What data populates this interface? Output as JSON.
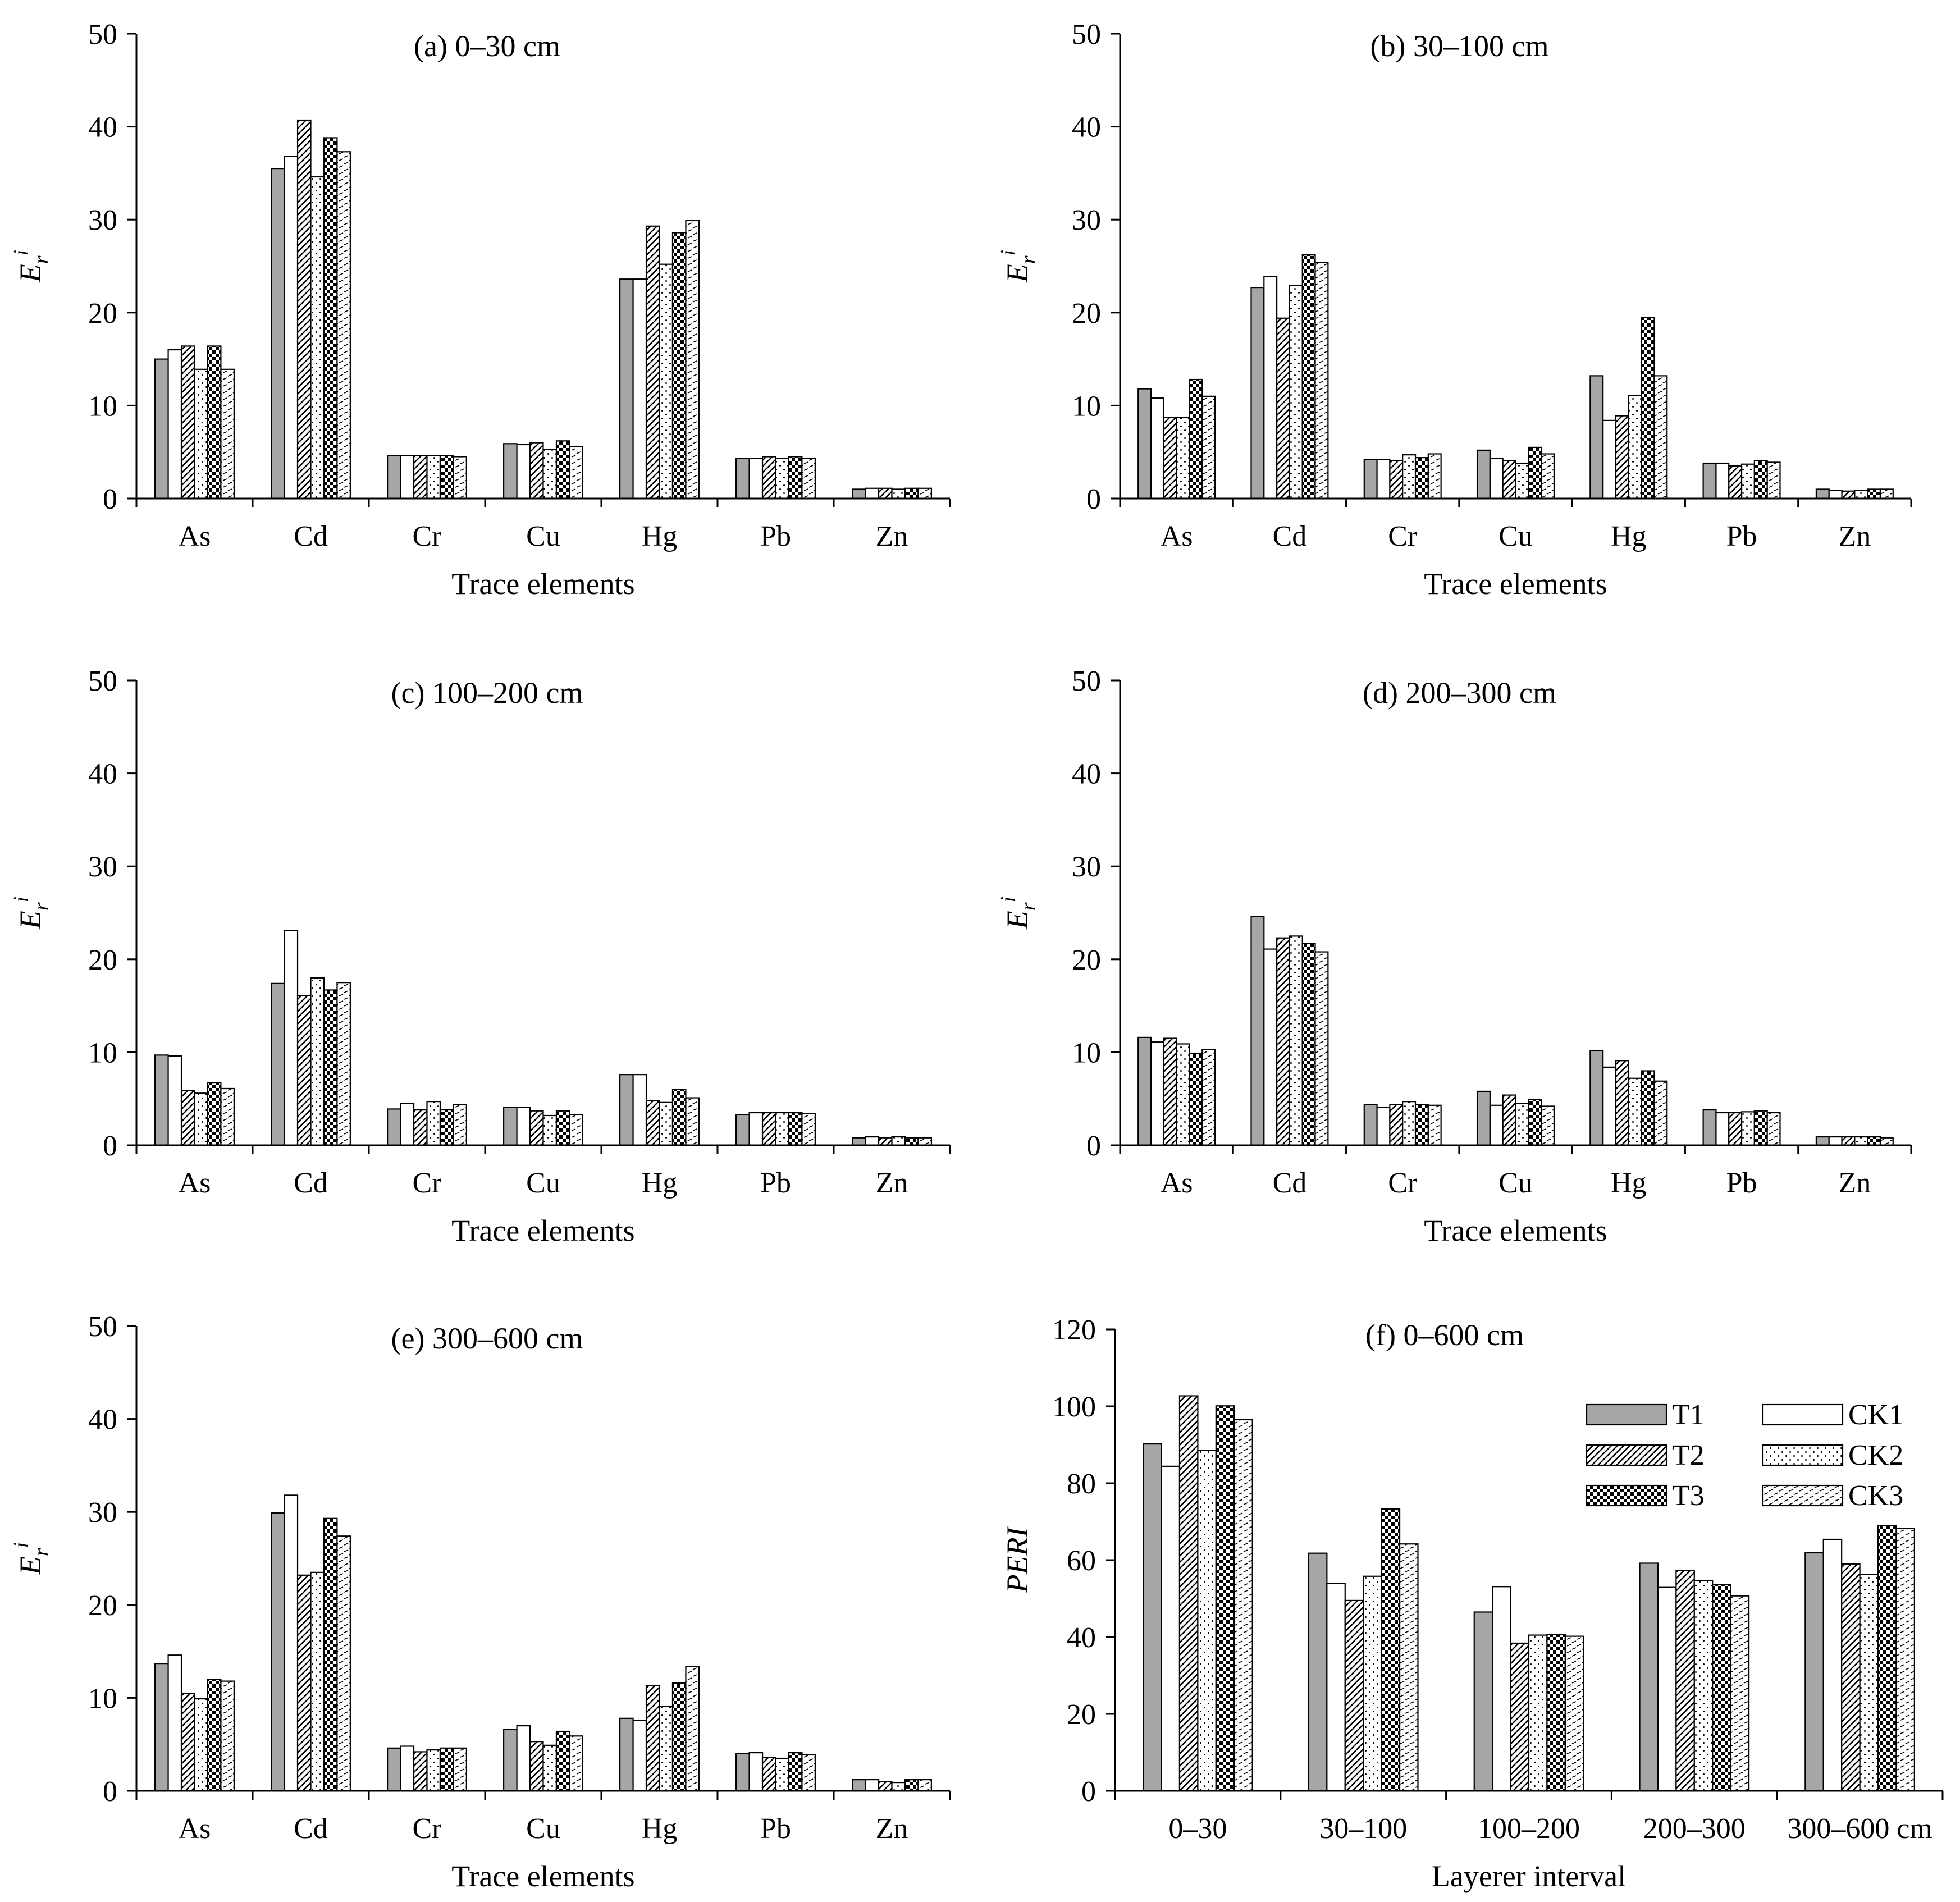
{
  "series_styles": [
    {
      "name": "T1",
      "fill": "#a6a6a6",
      "pattern": "solid"
    },
    {
      "name": "CK1",
      "fill": "#ffffff",
      "pattern": "solid"
    },
    {
      "name": "T2",
      "fill": "#ffffff",
      "pattern": "diagonal"
    },
    {
      "name": "CK2",
      "fill": "#ffffff",
      "pattern": "dots"
    },
    {
      "name": "T3",
      "fill": "#000000",
      "pattern": "checker"
    },
    {
      "name": "CK3",
      "fill": "#ffffff",
      "pattern": "dashes"
    }
  ],
  "colors": {
    "axis": "#000000",
    "bar_stroke": "#000000"
  },
  "chart_data": [
    {
      "id": "a",
      "type": "bar",
      "title": "(a) 0–30 cm",
      "xlabel": "Trace elements",
      "ylabel": "E",
      "ylabel_sub": "r",
      "ylabel_sup": "i",
      "ylim": [
        0,
        50
      ],
      "yticks": [
        "0",
        "10",
        "20",
        "30",
        "40",
        "50"
      ],
      "ytick_values": [
        0,
        10,
        20,
        30,
        40,
        50
      ],
      "categories": [
        "As",
        "Cd",
        "Cr",
        "Cu",
        "Hg",
        "Pb",
        "Zn"
      ],
      "series": [
        {
          "name": "T1",
          "values": [
            15.0,
            35.5,
            4.6,
            5.9,
            23.6,
            4.3,
            1.0
          ]
        },
        {
          "name": "CK1",
          "values": [
            16.0,
            36.8,
            4.6,
            5.8,
            23.6,
            4.3,
            1.1
          ]
        },
        {
          "name": "T2",
          "values": [
            16.4,
            40.7,
            4.6,
            6.0,
            29.3,
            4.5,
            1.1
          ]
        },
        {
          "name": "CK2",
          "values": [
            13.9,
            34.6,
            4.6,
            5.3,
            25.2,
            4.3,
            1.0
          ]
        },
        {
          "name": "T3",
          "values": [
            16.4,
            38.8,
            4.6,
            6.2,
            28.6,
            4.5,
            1.1
          ]
        },
        {
          "name": "CK3",
          "values": [
            13.9,
            37.3,
            4.5,
            5.6,
            29.9,
            4.3,
            1.1
          ]
        }
      ]
    },
    {
      "id": "b",
      "type": "bar",
      "title": "(b) 30–100 cm",
      "xlabel": "Trace elements",
      "ylabel": "E",
      "ylabel_sub": "r",
      "ylabel_sup": "i",
      "ylim": [
        0,
        50
      ],
      "yticks": [
        "0",
        "10",
        "20",
        "30",
        "40",
        "50"
      ],
      "ytick_values": [
        0,
        10,
        20,
        30,
        40,
        50
      ],
      "categories": [
        "As",
        "Cd",
        "Cr",
        "Cu",
        "Hg",
        "Pb",
        "Zn"
      ],
      "series": [
        {
          "name": "T1",
          "values": [
            11.8,
            22.7,
            4.2,
            5.2,
            13.2,
            3.8,
            1.0
          ]
        },
        {
          "name": "CK1",
          "values": [
            10.8,
            23.9,
            4.2,
            4.3,
            8.4,
            3.8,
            0.9
          ]
        },
        {
          "name": "T2",
          "values": [
            8.7,
            19.4,
            4.1,
            4.1,
            8.9,
            3.5,
            0.8
          ]
        },
        {
          "name": "CK2",
          "values": [
            8.7,
            22.9,
            4.7,
            3.8,
            11.1,
            3.7,
            0.9
          ]
        },
        {
          "name": "T3",
          "values": [
            12.8,
            26.2,
            4.4,
            5.5,
            19.5,
            4.1,
            1.0
          ]
        },
        {
          "name": "CK3",
          "values": [
            11.0,
            25.4,
            4.8,
            4.8,
            13.2,
            3.9,
            1.0
          ]
        }
      ]
    },
    {
      "id": "c",
      "type": "bar",
      "title": "(c) 100–200 cm",
      "xlabel": "Trace elements",
      "ylabel": "E",
      "ylabel_sub": "r",
      "ylabel_sup": "i",
      "ylim": [
        0,
        50
      ],
      "yticks": [
        "0",
        "10",
        "20",
        "30",
        "40",
        "50"
      ],
      "ytick_values": [
        0,
        10,
        20,
        30,
        40,
        50
      ],
      "categories": [
        "As",
        "Cd",
        "Cr",
        "Cu",
        "Hg",
        "Pb",
        "Zn"
      ],
      "series": [
        {
          "name": "T1",
          "values": [
            9.7,
            17.4,
            3.9,
            4.1,
            7.6,
            3.3,
            0.8
          ]
        },
        {
          "name": "CK1",
          "values": [
            9.6,
            23.1,
            4.5,
            4.1,
            7.6,
            3.5,
            0.9
          ]
        },
        {
          "name": "T2",
          "values": [
            5.9,
            16.1,
            3.8,
            3.7,
            4.8,
            3.5,
            0.8
          ]
        },
        {
          "name": "CK2",
          "values": [
            5.6,
            18.0,
            4.7,
            3.2,
            4.6,
            3.5,
            0.9
          ]
        },
        {
          "name": "T3",
          "values": [
            6.7,
            16.7,
            3.8,
            3.7,
            6.0,
            3.5,
            0.8
          ]
        },
        {
          "name": "CK3",
          "values": [
            6.1,
            17.5,
            4.4,
            3.3,
            5.1,
            3.4,
            0.8
          ]
        }
      ]
    },
    {
      "id": "d",
      "type": "bar",
      "title": "(d) 200–300 cm",
      "xlabel": "Trace elements",
      "ylabel": "E",
      "ylabel_sub": "r",
      "ylabel_sup": "i",
      "ylim": [
        0,
        50
      ],
      "yticks": [
        "0",
        "10",
        "20",
        "30",
        "40",
        "50"
      ],
      "ytick_values": [
        0,
        10,
        20,
        30,
        40,
        50
      ],
      "categories": [
        "As",
        "Cd",
        "Cr",
        "Cu",
        "Hg",
        "Pb",
        "Zn"
      ],
      "series": [
        {
          "name": "T1",
          "values": [
            11.6,
            24.6,
            4.4,
            5.8,
            10.2,
            3.8,
            0.9
          ]
        },
        {
          "name": "CK1",
          "values": [
            11.1,
            21.1,
            4.1,
            4.3,
            8.4,
            3.5,
            0.9
          ]
        },
        {
          "name": "T2",
          "values": [
            11.5,
            22.3,
            4.4,
            5.4,
            9.1,
            3.5,
            0.9
          ]
        },
        {
          "name": "CK2",
          "values": [
            10.9,
            22.5,
            4.7,
            4.5,
            7.2,
            3.6,
            0.9
          ]
        },
        {
          "name": "T3",
          "values": [
            9.9,
            21.7,
            4.4,
            4.9,
            8.0,
            3.7,
            0.9
          ]
        },
        {
          "name": "CK3",
          "values": [
            10.3,
            20.8,
            4.3,
            4.2,
            6.9,
            3.5,
            0.8
          ]
        }
      ]
    },
    {
      "id": "e",
      "type": "bar",
      "title": "(e) 300–600 cm",
      "xlabel": "Trace elements",
      "ylabel": "E",
      "ylabel_sub": "r",
      "ylabel_sup": "i",
      "ylim": [
        0,
        50
      ],
      "yticks": [
        "0",
        "10",
        "20",
        "30",
        "40",
        "50"
      ],
      "ytick_values": [
        0,
        10,
        20,
        30,
        40,
        50
      ],
      "categories": [
        "As",
        "Cd",
        "Cr",
        "Cu",
        "Hg",
        "Pb",
        "Zn"
      ],
      "series": [
        {
          "name": "T1",
          "values": [
            13.7,
            29.9,
            4.6,
            6.6,
            7.8,
            4.0,
            1.2
          ]
        },
        {
          "name": "CK1",
          "values": [
            14.6,
            31.8,
            4.8,
            7.0,
            7.6,
            4.1,
            1.2
          ]
        },
        {
          "name": "T2",
          "values": [
            10.5,
            23.2,
            4.2,
            5.3,
            11.3,
            3.6,
            1.0
          ]
        },
        {
          "name": "CK2",
          "values": [
            9.9,
            23.5,
            4.4,
            4.9,
            9.1,
            3.5,
            0.9
          ]
        },
        {
          "name": "T3",
          "values": [
            12.0,
            29.3,
            4.6,
            6.4,
            11.6,
            4.1,
            1.2
          ]
        },
        {
          "name": "CK3",
          "values": [
            11.8,
            27.4,
            4.6,
            5.9,
            13.4,
            3.9,
            1.2
          ]
        }
      ]
    },
    {
      "id": "f",
      "type": "bar",
      "title": "(f) 0–600 cm",
      "xlabel": "Layerer interval",
      "ylabel": "PERI",
      "ylabel_sub": "",
      "ylabel_sup": "",
      "ylim": [
        0,
        120
      ],
      "yticks": [
        "0",
        "20",
        "40",
        "60",
        "80",
        "100",
        "120"
      ],
      "ytick_values": [
        0,
        20,
        40,
        60,
        80,
        100,
        120
      ],
      "categories": [
        "0–30",
        "30–100",
        "100–200",
        "200–300",
        "300–600 cm"
      ],
      "legend": {
        "position": "top-right",
        "columns": 2,
        "order": [
          "T1",
          "CK1",
          "T2",
          "CK2",
          "T3",
          "CK3"
        ]
      },
      "series": [
        {
          "name": "T1",
          "values": [
            90.2,
            61.8,
            46.5,
            59.2,
            61.9
          ]
        },
        {
          "name": "CK1",
          "values": [
            84.4,
            53.9,
            53.1,
            52.9,
            65.4
          ]
        },
        {
          "name": "T2",
          "values": [
            102.7,
            49.5,
            38.4,
            57.3,
            59.0
          ]
        },
        {
          "name": "CK2",
          "values": [
            88.6,
            55.8,
            40.5,
            54.7,
            56.3
          ]
        },
        {
          "name": "T3",
          "values": [
            100.1,
            73.3,
            40.6,
            53.6,
            69.0
          ]
        },
        {
          "name": "CK3",
          "values": [
            96.5,
            64.2,
            40.2,
            50.7,
            68.2
          ]
        }
      ]
    }
  ]
}
